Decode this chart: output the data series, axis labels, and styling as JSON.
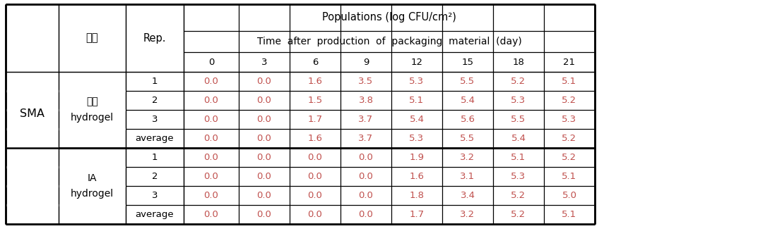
{
  "sma_label": "SMA",
  "category_label": "구분",
  "rep_label": "Rep.",
  "pop_header": "Populations (log CFU/cm²)",
  "time_header": "Time  after  production  of  packaging  material  (day)",
  "time_points": [
    "0",
    "3",
    "6",
    "9",
    "12",
    "15",
    "18",
    "21"
  ],
  "group1_line1": "기존",
  "group1_line2": "hydrogel",
  "group2_line1": "IA",
  "group2_line2": "hydrogel",
  "rows": [
    {
      "rep": "1",
      "values": [
        "0.0",
        "0.0",
        "1.6",
        "3.5",
        "5.3",
        "5.5",
        "5.2",
        "5.1"
      ]
    },
    {
      "rep": "2",
      "values": [
        "0.0",
        "0.0",
        "1.5",
        "3.8",
        "5.1",
        "5.4",
        "5.3",
        "5.2"
      ]
    },
    {
      "rep": "3",
      "values": [
        "0.0",
        "0.0",
        "1.7",
        "3.7",
        "5.4",
        "5.6",
        "5.5",
        "5.3"
      ]
    },
    {
      "rep": "average",
      "values": [
        "0.0",
        "0.0",
        "1.6",
        "3.7",
        "5.3",
        "5.5",
        "5.4",
        "5.2"
      ]
    },
    {
      "rep": "1",
      "values": [
        "0.0",
        "0.0",
        "0.0",
        "0.0",
        "1.9",
        "3.2",
        "5.1",
        "5.2"
      ]
    },
    {
      "rep": "2",
      "values": [
        "0.0",
        "0.0",
        "0.0",
        "0.0",
        "1.6",
        "3.1",
        "5.3",
        "5.1"
      ]
    },
    {
      "rep": "3",
      "values": [
        "0.0",
        "0.0",
        "0.0",
        "0.0",
        "1.8",
        "3.4",
        "5.2",
        "5.0"
      ]
    },
    {
      "rep": "average",
      "values": [
        "0.0",
        "0.0",
        "0.0",
        "0.0",
        "1.7",
        "3.2",
        "5.2",
        "5.1"
      ]
    }
  ],
  "data_color": "#c0504d",
  "bg_color": "#ffffff",
  "lw_outer": 1.8,
  "lw_inner": 0.9,
  "fs_header": 10.5,
  "fs_data": 9.5
}
